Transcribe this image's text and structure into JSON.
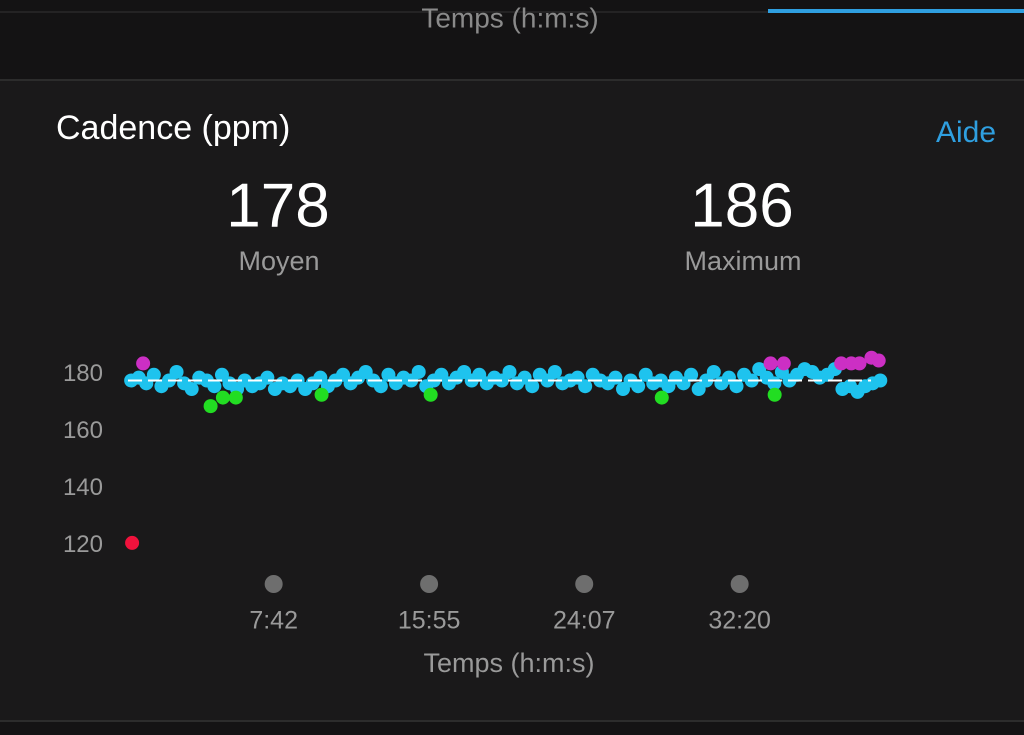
{
  "header_partial": "Temps (h:m:s)",
  "card": {
    "title": "Cadence (ppm)",
    "help": "Aide",
    "stats": [
      {
        "value": 178,
        "label": "Moyen"
      },
      {
        "value": 186,
        "label": "Maximum"
      }
    ]
  },
  "chart_data": {
    "type": "scatter",
    "x_label": "Temps (h:m:s)",
    "xlim": [
      0,
      2420
    ],
    "xticks": [
      {
        "value": 462,
        "label": "7:42"
      },
      {
        "value": 955,
        "label": "15:55"
      },
      {
        "value": 1447,
        "label": "24:07"
      },
      {
        "value": 1940,
        "label": "32:20"
      }
    ],
    "ylim": [
      115,
      188
    ],
    "yticks": [
      120,
      140,
      160,
      180
    ],
    "series": [
      {
        "color": "#1ec3ee",
        "x": [
          10,
          34,
          58,
          82,
          106,
          130,
          154,
          178,
          202,
          226,
          250,
          274,
          298,
          322,
          346,
          370,
          394,
          418,
          442,
          466,
          490,
          514,
          538,
          562,
          586,
          610,
          634,
          658,
          682,
          706,
          730,
          754,
          778,
          802,
          826,
          850,
          874,
          898,
          922,
          946,
          970,
          994,
          1018,
          1042,
          1066,
          1090,
          1114,
          1138,
          1162,
          1186,
          1210,
          1234,
          1258,
          1282,
          1306,
          1330,
          1354,
          1378,
          1402,
          1426,
          1450,
          1474,
          1498,
          1522,
          1546,
          1570,
          1594,
          1618,
          1642,
          1666,
          1690,
          1714,
          1738,
          1762,
          1786,
          1810,
          1834,
          1858,
          1882,
          1906,
          1930,
          1954,
          1978,
          2002,
          2026,
          2050,
          2074,
          2098,
          2122,
          2146,
          2170,
          2194,
          2218,
          2242,
          2266,
          2290,
          2314,
          2338,
          2362,
          2386
        ],
        "values": [
          178,
          179,
          177,
          180,
          176,
          178,
          181,
          177,
          175,
          179,
          178,
          176,
          180,
          177,
          175,
          178,
          176,
          177,
          179,
          175,
          177,
          176,
          178,
          175,
          177,
          179,
          176,
          178,
          180,
          177,
          179,
          181,
          178,
          176,
          180,
          177,
          179,
          178,
          181,
          176,
          178,
          180,
          177,
          179,
          181,
          178,
          180,
          177,
          179,
          178,
          181,
          177,
          179,
          176,
          180,
          178,
          181,
          177,
          178,
          179,
          176,
          180,
          178,
          177,
          179,
          175,
          178,
          176,
          180,
          177,
          178,
          176,
          179,
          177,
          180,
          175,
          178,
          181,
          177,
          179,
          176,
          180,
          178,
          182,
          179,
          177,
          181,
          178,
          180,
          182,
          181,
          179,
          180,
          182,
          175,
          176,
          174,
          176,
          177,
          178
        ]
      },
      {
        "color": "#cc2fc4",
        "x": [
          48,
          2038,
          2080,
          2262,
          2294,
          2320,
          2358,
          2381
        ],
        "values": [
          184,
          184,
          184,
          184,
          184,
          184,
          186,
          185
        ]
      },
      {
        "color": "#22dd22",
        "x": [
          262,
          301,
          342,
          614,
          960,
          1693,
          2051
        ],
        "values": [
          169,
          172,
          172,
          173,
          173,
          172,
          173
        ]
      },
      {
        "color": "#f0123c",
        "x": [
          13
        ],
        "values": [
          121
        ]
      }
    ]
  }
}
